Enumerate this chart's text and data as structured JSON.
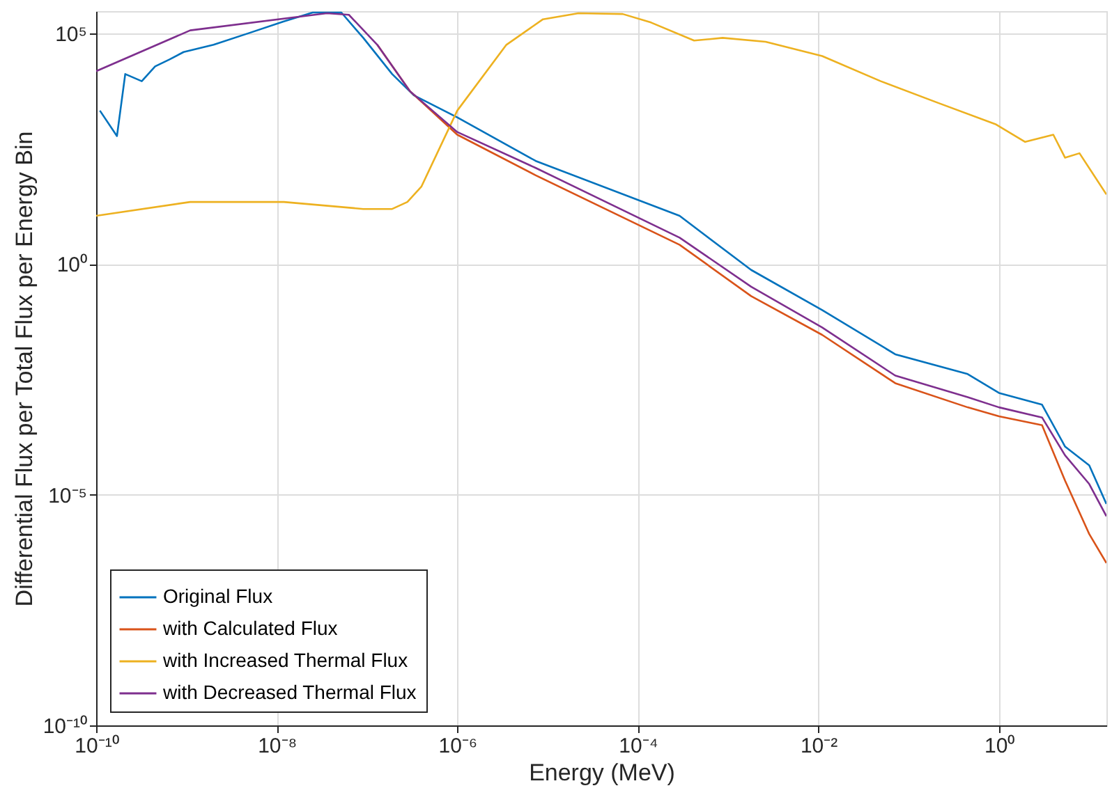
{
  "chart_data": {
    "type": "line",
    "xlabel": "Energy (MeV)",
    "ylabel": "Differential Flux per Total Flux per Energy Bin",
    "log": "xy",
    "grid": true,
    "legend": "bottom left",
    "line_style": "solid",
    "marker": "none",
    "xlim": [
      1e-10,
      15.5
    ],
    "ylim": [
      1e-10,
      300000.0
    ],
    "xticks": [
      {
        "value": 1e-10,
        "label": "10⁻¹⁰"
      },
      {
        "value": 1e-08,
        "label": "10⁻⁸"
      },
      {
        "value": 1e-06,
        "label": "10⁻⁶"
      },
      {
        "value": 0.0001,
        "label": "10⁻⁴"
      },
      {
        "value": 0.01,
        "label": "10⁻²"
      },
      {
        "value": 1,
        "label": "10⁰"
      }
    ],
    "yticks": [
      {
        "value": 1e-10,
        "label": "10⁻¹⁰"
      },
      {
        "value": 1e-05,
        "label": "10⁻⁵"
      },
      {
        "value": 1,
        "label": "10⁰"
      },
      {
        "value": 100000.0,
        "label": "10⁵"
      }
    ],
    "series": [
      {
        "name": "Original Flux",
        "color": "#0072bd",
        "x": [
          1.1e-10,
          1.7e-10,
          2.1e-10,
          3.2e-10,
          4.5e-10,
          6.5e-10,
          9.3e-10,
          2e-09,
          4.9e-09,
          1.2e-08,
          2.5e-08,
          5.2e-08,
          9.1e-08,
          1.9e-07,
          3.3e-07,
          1e-06,
          7.4e-06,
          0.00029,
          0.0018,
          0.011,
          0.071,
          0.45,
          1,
          3,
          5.4,
          10,
          15.5
        ],
        "values": [
          2100,
          590,
          13000,
          9100,
          19000,
          27000,
          39000,
          56000,
          100000,
          180000,
          280000,
          280000,
          79000,
          13000,
          4500,
          1500,
          170,
          11,
          0.74,
          0.1,
          0.011,
          0.0041,
          0.0016,
          0.00089,
          0.00011,
          4.3e-05,
          6.3e-06
        ]
      },
      {
        "name": "with Calculated Flux",
        "color": "#d95319",
        "x": [
          1.3e-07,
          3e-07,
          1e-06,
          7.4e-06,
          0.00029,
          0.0018,
          0.011,
          0.071,
          0.45,
          1,
          3,
          5.4,
          10,
          15.5
        ],
        "values": [
          56000,
          5500,
          630,
          83,
          2.6,
          0.2,
          0.029,
          0.0026,
          0.00078,
          0.0005,
          0.00032,
          2e-05,
          1.4e-06,
          3.3e-07
        ]
      },
      {
        "name": "with Increased Thermal Flux",
        "color": "#edb120",
        "x": [
          1e-10,
          1.1e-09,
          1.2e-08,
          9.1e-08,
          1.9e-07,
          2.8e-07,
          4e-07,
          1e-06,
          3.5e-06,
          8.9e-06,
          2.2e-05,
          6.8e-05,
          0.00014,
          0.00042,
          0.00087,
          0.0026,
          0.011,
          0.049,
          0.21,
          0.93,
          1.95,
          4,
          5.4,
          7.8,
          15.5
        ],
        "values": [
          11,
          22,
          22,
          15.5,
          15.5,
          22,
          47,
          2100,
          56000,
          200000,
          270000,
          260000,
          170000,
          69000,
          79000,
          65000,
          32000,
          9100,
          3100,
          1050,
          440,
          630,
          200,
          250,
          32
        ]
      },
      {
        "name": "with Decreased Thermal Flux",
        "color": "#7e2f8e",
        "x": [
          1e-10,
          1.1e-09,
          3.6e-08,
          6.3e-08,
          1.3e-07,
          3e-07,
          1e-06,
          7.4e-06,
          0.00029,
          0.0018,
          0.011,
          0.071,
          0.45,
          1,
          3,
          5.4,
          10,
          15.5
        ],
        "values": [
          15000,
          115000,
          270000,
          250000,
          56000,
          5500,
          720,
          120,
          3.7,
          0.32,
          0.042,
          0.0038,
          0.0013,
          0.00078,
          0.00047,
          7.1e-05,
          1.7e-05,
          3.4e-06
        ]
      }
    ]
  }
}
